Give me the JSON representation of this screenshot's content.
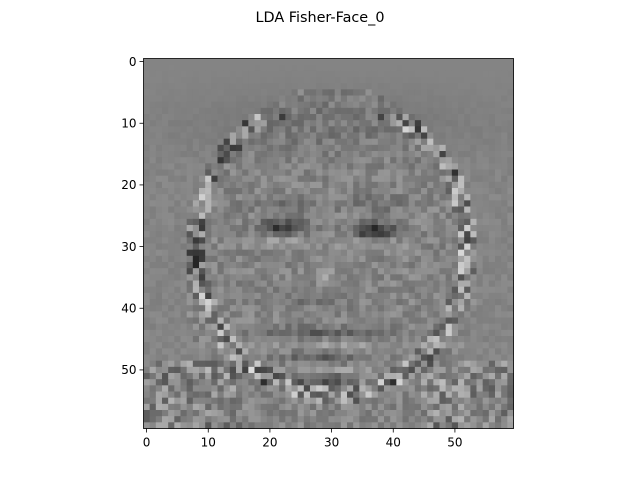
{
  "chart_data": {
    "type": "heatmap",
    "title": "LDA Fisher-Face_0",
    "colormap": "gray",
    "image_size": [
      60,
      60
    ],
    "x_ticks": [
      0,
      10,
      20,
      30,
      40,
      50
    ],
    "y_ticks": [
      0,
      10,
      20,
      30,
      40,
      50
    ],
    "xlim": [
      -0.5,
      59.5
    ],
    "ylim": [
      59.5,
      -0.5
    ],
    "xlabel": "",
    "ylabel": "",
    "grid": false,
    "description_of_content": "grayscale eigen-face style image of a face; pixel values are not labeled"
  },
  "colors": {
    "background": "#ffffff",
    "axes": "#000000"
  }
}
